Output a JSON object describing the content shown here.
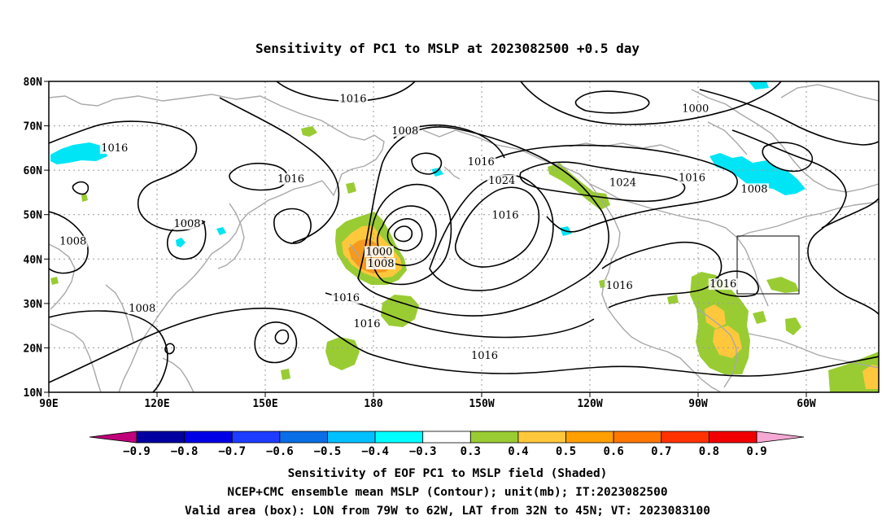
{
  "title": "Sensitivity of PC1 to MSLP at 2023082500 +0.5 day",
  "map": {
    "lat_labels": [
      "80N",
      "70N",
      "60N",
      "50N",
      "40N",
      "30N",
      "20N",
      "10N"
    ],
    "lon_labels": [
      "90E",
      "120E",
      "150E",
      "180",
      "150W",
      "120W",
      "90W",
      "60W"
    ],
    "contour_labels": [
      {
        "text": "1016",
        "lon": 178,
        "lat": 75.5
      },
      {
        "text": "1000",
        "lon": -83,
        "lat": 73.3
      },
      {
        "text": "1008",
        "lon": -167,
        "lat": 68.3
      },
      {
        "text": "1016",
        "lon": 109,
        "lat": 64.4
      },
      {
        "text": "1016",
        "lon": -145,
        "lat": 61.3
      },
      {
        "text": "1016",
        "lon": 160,
        "lat": 57.5
      },
      {
        "text": "1024",
        "lon": -139,
        "lat": 57.1
      },
      {
        "text": "1024",
        "lon": -104,
        "lat": 56.6
      },
      {
        "text": "1016",
        "lon": -84,
        "lat": 57.7
      },
      {
        "text": "1008",
        "lon": -66,
        "lat": 55.2
      },
      {
        "text": "1008",
        "lon": 130,
        "lat": 47.4
      },
      {
        "text": "1016",
        "lon": -138,
        "lat": 49.3
      },
      {
        "text": "1008",
        "lon": 97,
        "lat": 43.4
      },
      {
        "text": "1000",
        "lon": -174.5,
        "lat": 41.1
      },
      {
        "text": "1008",
        "lon": -174,
        "lat": 38.4
      },
      {
        "text": "1016",
        "lon": -105,
        "lat": 33.5
      },
      {
        "text": "1016",
        "lon": -75,
        "lat": 33.8
      },
      {
        "text": "1016",
        "lon": 176,
        "lat": 30.7
      },
      {
        "text": "1008",
        "lon": 117,
        "lat": 28.3
      },
      {
        "text": "1016",
        "lon": -178,
        "lat": 24.8
      },
      {
        "text": "1016",
        "lon": -144,
        "lat": 17.7
      }
    ],
    "valid_box": {
      "lon_w": -79,
      "lon_e": -62,
      "lat_s": 32,
      "lat_n": 45
    }
  },
  "colorbar": {
    "ticks": [
      "−0.9",
      "−0.8",
      "−0.7",
      "−0.6",
      "−0.5",
      "−0.4",
      "−0.3",
      "0.3",
      "0.4",
      "0.5",
      "0.6",
      "0.7",
      "0.8",
      "0.9"
    ],
    "left_arrow_color": "#c0007a",
    "right_arrow_color": "#f5a8d4",
    "colors": [
      "#0000a0",
      "#0000e6",
      "#1e3cff",
      "#0a6ee6",
      "#00c0ff",
      "#00ffff",
      "#ffffff",
      "#99cc33",
      "#ffc83c",
      "#ff9f00",
      "#ff7800",
      "#ff3200",
      "#f00000"
    ],
    "label_red_bins": []
  },
  "shading_colors": {
    "cyan": "#00e5f5",
    "green": "#99cc33",
    "yellow": "#ffc83c",
    "orange": "#f59a1e",
    "contour": "#000000",
    "coast": "#a8a8a8",
    "grid": "#9a9a9a"
  },
  "captions": [
    "Sensitivity of EOF PC1 to MSLP field (Shaded)",
    "NCEP+CMC ensemble mean MSLP (Contour); unit(mb); IT:2023082500",
    "Valid area (box): LON from 79W to 62W, LAT from 32N to 45N; VT: 2023083100"
  ]
}
